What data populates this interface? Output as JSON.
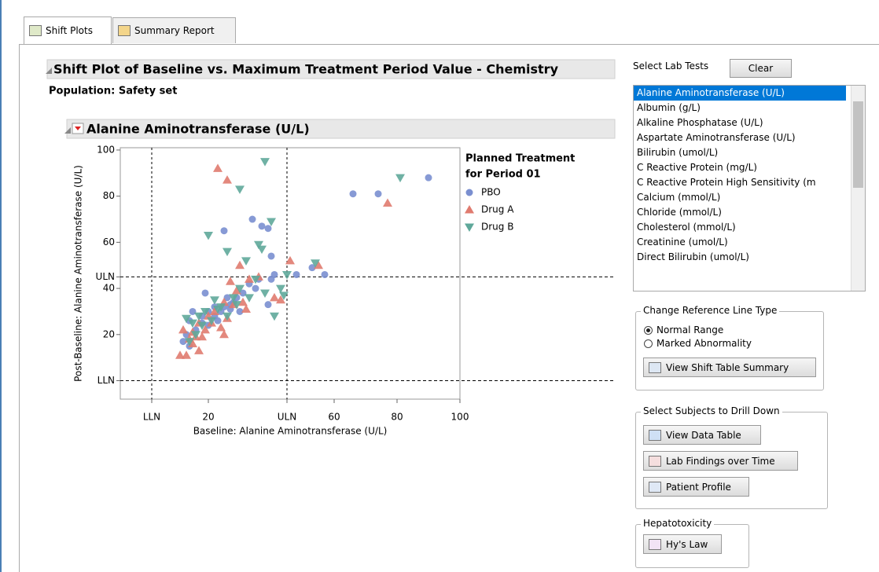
{
  "tabs": [
    "Shift Plots",
    "Summary Report"
  ],
  "header": {
    "title": "Shift Plot of Baseline vs. Maximum Treatment Period Value - Chemistry",
    "population": "Population: Safety set"
  },
  "chart_data": {
    "type": "scatter",
    "title": "Alanine Aminotransferase (U/L)",
    "x_label": "Baseline: Alanine Aminotransferase (U/L)",
    "y_label": "Post-Baseline: Alanine Aminotransferase (U/L)",
    "legend_title": [
      "Planned Treatment",
      "for Period 01"
    ],
    "xlim": [
      -8,
      100
    ],
    "ylim": [
      -8,
      101
    ],
    "xticks": [
      {
        "value": 2,
        "label": "LLN"
      },
      20,
      {
        "value": 45,
        "label": "ULN"
      },
      60,
      80,
      100
    ],
    "yticks": [
      {
        "value": 0,
        "label": "LLN"
      },
      20,
      40,
      {
        "value": 45,
        "label": "ULN"
      },
      60,
      80,
      100
    ],
    "series": [
      {
        "name": "PBO",
        "color": "#7a8fd0",
        "marker": "circle",
        "x": [
          90,
          66,
          74,
          57,
          53,
          48,
          40,
          40,
          41,
          34,
          37,
          39,
          25,
          36,
          33,
          39,
          31,
          27,
          25,
          22,
          20,
          18,
          15,
          14,
          13,
          12,
          14,
          20,
          22,
          24,
          28,
          30,
          26,
          19,
          35,
          16,
          18,
          23,
          27,
          29
        ],
        "values": [
          88,
          81,
          81,
          46,
          49,
          46,
          54,
          44,
          46,
          70,
          67,
          66,
          65,
          44,
          42,
          33,
          38,
          33,
          32,
          32,
          30,
          28,
          30,
          26,
          20,
          17,
          15,
          24,
          28,
          30,
          34,
          30,
          36,
          38,
          40,
          22,
          25,
          26,
          31,
          36
        ]
      },
      {
        "name": "Drug A",
        "color": "#e07b6f",
        "marker": "triangle-up",
        "x": [
          23,
          26,
          77,
          46,
          55,
          41,
          43,
          27,
          30,
          33,
          36,
          29,
          25,
          22,
          20,
          17,
          15,
          12,
          11,
          13,
          17,
          15,
          18,
          25,
          24,
          28,
          31,
          19,
          21,
          16,
          14,
          26,
          32
        ],
        "values": [
          92,
          87,
          77,
          52,
          50,
          36,
          35,
          43,
          50,
          44,
          45,
          39,
          34,
          30,
          28,
          25,
          21,
          22,
          11,
          11,
          13,
          16,
          19,
          20,
          23,
          33,
          34,
          22,
          25,
          19,
          18,
          27,
          31
        ]
      },
      {
        "name": "Drug B",
        "color": "#5fa89a",
        "marker": "triangle-down",
        "x": [
          38,
          30,
          81,
          20,
          36,
          37,
          40,
          26,
          32,
          54,
          45,
          43,
          44,
          41,
          38,
          35,
          30,
          28,
          24,
          22,
          19,
          17,
          13,
          15,
          18,
          16,
          14,
          21,
          23,
          26,
          29,
          33
        ],
        "values": [
          95,
          83,
          88,
          63,
          59,
          57,
          69,
          56,
          52,
          51,
          46,
          40,
          37,
          28,
          38,
          44,
          40,
          36,
          32,
          35,
          30,
          28,
          27,
          25,
          24,
          20,
          17,
          26,
          31,
          28,
          33,
          36
        ]
      }
    ]
  },
  "lab_tests": {
    "label": "Select Lab Tests",
    "button": "Clear",
    "selected": 0,
    "items": [
      "Alanine Aminotransferase (U/L)",
      "Albumin (g/L)",
      "Alkaline Phosphatase (U/L)",
      "Aspartate Aminotransferase (U/L)",
      "Bilirubin (umol/L)",
      "C Reactive Protein (mg/L)",
      "C Reactive Protein High Sensitivity (m",
      "Calcium (mmol/L)",
      "Chloride (mmol/L)",
      "Cholesterol (mmol/L)",
      "Creatinine (umol/L)",
      "Direct Bilirubin (umol/L)"
    ]
  },
  "reference_line_type": {
    "title": "Change Reference Line Type",
    "options": [
      "Normal Range",
      "Marked Abnormality"
    ],
    "checked": 0,
    "button": "View Shift Table Summary"
  },
  "drill_down": {
    "title": "Select Subjects to Drill Down",
    "buttons": [
      "View Data Table",
      "Lab Findings over Time",
      "Patient Profile"
    ]
  },
  "hepatotoxicity": {
    "title": "Hepatotoxicity",
    "buttons": [
      "Hy's Law"
    ]
  }
}
